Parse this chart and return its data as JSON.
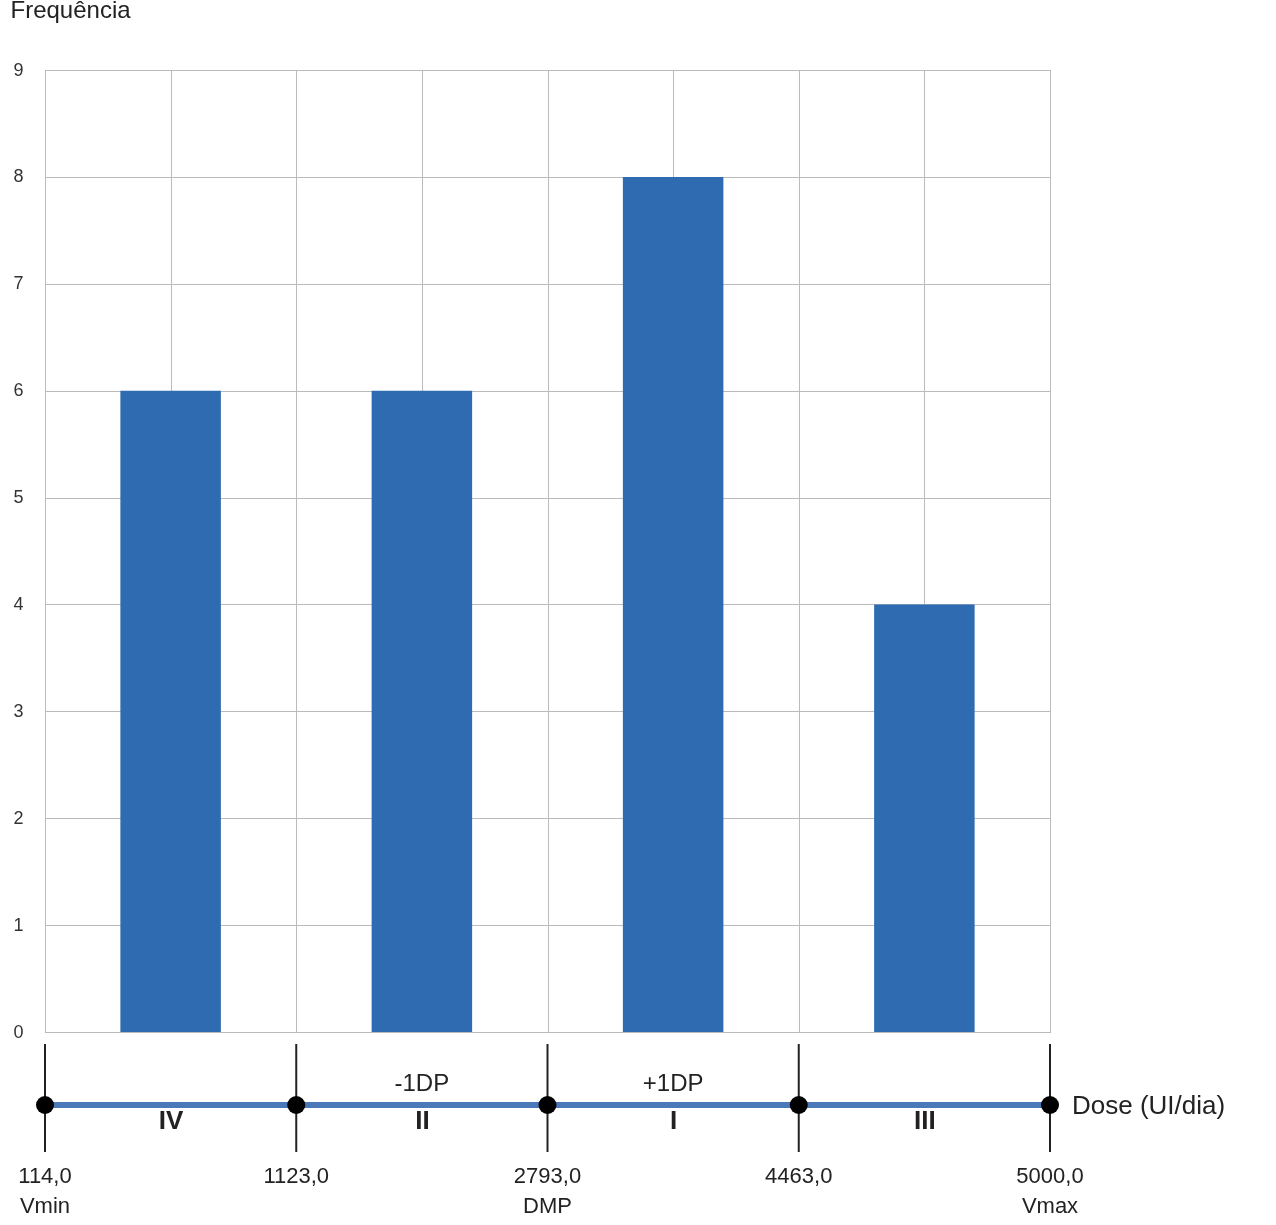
{
  "chart_data": {
    "type": "bar",
    "ylabel": "Frequência",
    "xlabel": "Dose (UI/dia)",
    "categories": [
      "IV",
      "II",
      "I",
      "III"
    ],
    "values": [
      6,
      6,
      8,
      4
    ],
    "color": "#2e6bb0",
    "ylim": [
      0,
      9
    ],
    "yticks": [
      0,
      1,
      2,
      3,
      4,
      5,
      6,
      7,
      8,
      9
    ],
    "grid": true,
    "annotations": [
      "114,0\nVmin",
      "1123,0",
      "2793,0\nDMP",
      "4463,0",
      "5000,0\nVmax",
      "-1DP",
      "+1DP"
    ]
  }
}
